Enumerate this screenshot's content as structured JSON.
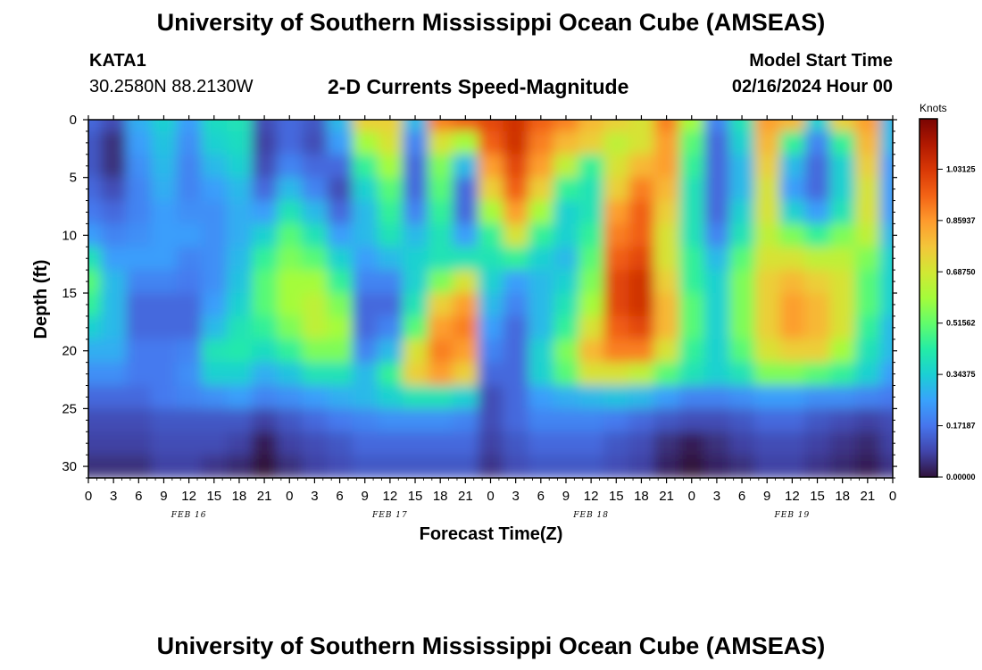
{
  "page": {
    "title_top": "University of Southern Mississippi Ocean Cube (AMSEAS)",
    "title_bottom": "University of Southern Mississippi Ocean Cube (AMSEAS)",
    "station_id": "KATA1",
    "station_coords": "30.2580N  88.2130W",
    "subtitle": "2-D Currents Speed-Magnitude",
    "model_start_label": "Model Start Time",
    "model_start_value": "02/16/2024 Hour 00"
  },
  "chart_data": {
    "type": "heatmap",
    "title": "2-D Currents Speed-Magnitude",
    "xlabel": "Forecast Time(Z)",
    "ylabel": "Depth (ft)",
    "x_range_hours": [
      0,
      96
    ],
    "y_range_ft": [
      0,
      31
    ],
    "y_inverted": true,
    "y_ticks": [
      0,
      5,
      10,
      15,
      20,
      25,
      30
    ],
    "x_tick_labels": [
      "0",
      "3",
      "6",
      "9",
      "12",
      "15",
      "18",
      "21",
      "0",
      "3",
      "6",
      "9",
      "12",
      "15",
      "18",
      "21",
      "0",
      "3",
      "6",
      "9",
      "12",
      "15",
      "18",
      "21",
      "0",
      "3",
      "6",
      "9",
      "12",
      "15",
      "18",
      "21",
      "0"
    ],
    "day_labels": [
      "FEB 16",
      "FEB 17",
      "FEB 18",
      "FEB 19"
    ],
    "colorbar": {
      "title": "Knots",
      "tick_labels": [
        "1.03125",
        "0.85937",
        "0.68750",
        "0.51562",
        "0.34375",
        "0.17187",
        "0.00000"
      ],
      "range": [
        0,
        1.2
      ],
      "colors": [
        "#30123b",
        "#4145ab",
        "#4675ed",
        "#39a2fc",
        "#1bcfd4",
        "#24eca6",
        "#61fc6c",
        "#a4fc3b",
        "#d1e834",
        "#f3c63a",
        "#fe9b2d",
        "#f36315",
        "#d93806",
        "#b11901",
        "#7a0402"
      ]
    },
    "speed_field_knots": {
      "description": "depth rows at 0,2,4,...,30 ft; columns every 3 hours from 0 to 96",
      "depths_ft": [
        0,
        2,
        4,
        6,
        8,
        10,
        12,
        14,
        16,
        18,
        20,
        22,
        24,
        26,
        28,
        30
      ],
      "hours": [
        0,
        3,
        6,
        9,
        12,
        15,
        18,
        21,
        24,
        27,
        30,
        33,
        36,
        39,
        42,
        45,
        48,
        51,
        54,
        57,
        60,
        63,
        66,
        69,
        72,
        75,
        78,
        81,
        84,
        87,
        90,
        93,
        96
      ],
      "rows": [
        [
          0.15,
          0.1,
          0.28,
          0.35,
          0.25,
          0.38,
          0.4,
          0.1,
          0.15,
          0.12,
          0.3,
          0.75,
          0.75,
          0.3,
          0.9,
          0.95,
          1.0,
          1.05,
          0.95,
          0.9,
          0.8,
          0.75,
          0.7,
          0.9,
          0.6,
          0.2,
          0.4,
          0.85,
          0.8,
          0.35,
          0.75,
          0.85,
          0.3
        ],
        [
          0.12,
          0.05,
          0.25,
          0.32,
          0.22,
          0.35,
          0.38,
          0.08,
          0.15,
          0.1,
          0.25,
          0.6,
          0.7,
          0.2,
          0.7,
          0.6,
          0.95,
          1.05,
          0.9,
          0.8,
          0.75,
          0.65,
          0.7,
          0.85,
          0.5,
          0.15,
          0.35,
          0.8,
          0.45,
          0.2,
          0.45,
          0.8,
          0.3
        ],
        [
          0.12,
          0.05,
          0.22,
          0.3,
          0.2,
          0.3,
          0.35,
          0.1,
          0.2,
          0.15,
          0.15,
          0.45,
          0.6,
          0.15,
          0.55,
          0.3,
          0.85,
          1.0,
          0.85,
          0.65,
          0.45,
          0.7,
          0.8,
          0.85,
          0.45,
          0.15,
          0.3,
          0.75,
          0.3,
          0.15,
          0.35,
          0.75,
          0.25
        ],
        [
          0.15,
          0.1,
          0.2,
          0.28,
          0.2,
          0.25,
          0.3,
          0.15,
          0.3,
          0.2,
          0.1,
          0.35,
          0.5,
          0.15,
          0.5,
          0.15,
          0.75,
          0.95,
          0.75,
          0.45,
          0.4,
          0.75,
          0.9,
          0.8,
          0.4,
          0.15,
          0.3,
          0.7,
          0.25,
          0.15,
          0.35,
          0.7,
          0.25
        ],
        [
          0.18,
          0.15,
          0.2,
          0.25,
          0.22,
          0.22,
          0.28,
          0.25,
          0.4,
          0.3,
          0.15,
          0.3,
          0.45,
          0.2,
          0.45,
          0.15,
          0.6,
          0.85,
          0.6,
          0.35,
          0.4,
          0.85,
          0.95,
          0.75,
          0.4,
          0.15,
          0.35,
          0.7,
          0.35,
          0.25,
          0.4,
          0.7,
          0.25
        ],
        [
          0.25,
          0.2,
          0.22,
          0.25,
          0.25,
          0.22,
          0.28,
          0.35,
          0.5,
          0.4,
          0.25,
          0.3,
          0.4,
          0.3,
          0.4,
          0.25,
          0.45,
          0.7,
          0.45,
          0.35,
          0.45,
          0.9,
          0.95,
          0.7,
          0.4,
          0.2,
          0.4,
          0.65,
          0.55,
          0.45,
          0.55,
          0.65,
          0.3
        ],
        [
          0.4,
          0.25,
          0.25,
          0.25,
          0.2,
          0.22,
          0.3,
          0.45,
          0.55,
          0.5,
          0.35,
          0.25,
          0.3,
          0.35,
          0.4,
          0.4,
          0.4,
          0.45,
          0.35,
          0.3,
          0.5,
          0.95,
          1.0,
          0.7,
          0.45,
          0.3,
          0.5,
          0.7,
          0.7,
          0.65,
          0.65,
          0.55,
          0.35
        ],
        [
          0.5,
          0.3,
          0.2,
          0.2,
          0.18,
          0.22,
          0.32,
          0.5,
          0.6,
          0.6,
          0.45,
          0.2,
          0.2,
          0.35,
          0.55,
          0.7,
          0.35,
          0.25,
          0.3,
          0.35,
          0.55,
          1.0,
          1.05,
          0.75,
          0.45,
          0.35,
          0.55,
          0.75,
          0.8,
          0.75,
          0.7,
          0.5,
          0.35
        ],
        [
          0.45,
          0.3,
          0.15,
          0.15,
          0.15,
          0.25,
          0.35,
          0.5,
          0.6,
          0.65,
          0.55,
          0.15,
          0.15,
          0.4,
          0.75,
          0.85,
          0.3,
          0.2,
          0.3,
          0.4,
          0.6,
          1.0,
          1.05,
          0.8,
          0.5,
          0.35,
          0.55,
          0.75,
          0.85,
          0.8,
          0.7,
          0.5,
          0.35
        ],
        [
          0.35,
          0.3,
          0.15,
          0.15,
          0.15,
          0.3,
          0.4,
          0.45,
          0.55,
          0.65,
          0.6,
          0.15,
          0.2,
          0.5,
          0.85,
          0.9,
          0.25,
          0.15,
          0.3,
          0.45,
          0.7,
          0.95,
          1.0,
          0.8,
          0.5,
          0.35,
          0.55,
          0.75,
          0.85,
          0.8,
          0.7,
          0.45,
          0.3
        ],
        [
          0.28,
          0.28,
          0.18,
          0.18,
          0.2,
          0.4,
          0.42,
          0.38,
          0.45,
          0.55,
          0.55,
          0.2,
          0.3,
          0.7,
          0.9,
          0.85,
          0.2,
          0.15,
          0.35,
          0.55,
          0.8,
          0.9,
          0.9,
          0.7,
          0.45,
          0.35,
          0.5,
          0.7,
          0.75,
          0.75,
          0.6,
          0.4,
          0.3
        ],
        [
          0.22,
          0.22,
          0.18,
          0.18,
          0.22,
          0.35,
          0.35,
          0.28,
          0.32,
          0.4,
          0.4,
          0.3,
          0.45,
          0.75,
          0.85,
          0.75,
          0.15,
          0.15,
          0.35,
          0.5,
          0.7,
          0.7,
          0.65,
          0.5,
          0.4,
          0.35,
          0.4,
          0.55,
          0.55,
          0.5,
          0.45,
          0.35,
          0.25
        ],
        [
          0.15,
          0.15,
          0.15,
          0.18,
          0.2,
          0.22,
          0.25,
          0.2,
          0.22,
          0.25,
          0.28,
          0.3,
          0.35,
          0.4,
          0.4,
          0.35,
          0.1,
          0.15,
          0.25,
          0.28,
          0.3,
          0.32,
          0.3,
          0.25,
          0.2,
          0.2,
          0.22,
          0.25,
          0.25,
          0.22,
          0.22,
          0.2,
          0.18
        ],
        [
          0.1,
          0.1,
          0.1,
          0.12,
          0.12,
          0.12,
          0.12,
          0.08,
          0.12,
          0.15,
          0.18,
          0.2,
          0.22,
          0.22,
          0.22,
          0.2,
          0.1,
          0.15,
          0.2,
          0.2,
          0.2,
          0.18,
          0.15,
          0.12,
          0.1,
          0.1,
          0.12,
          0.15,
          0.15,
          0.12,
          0.1,
          0.08,
          0.1
        ],
        [
          0.08,
          0.08,
          0.08,
          0.1,
          0.1,
          0.1,
          0.08,
          0.02,
          0.08,
          0.1,
          0.12,
          0.15,
          0.15,
          0.15,
          0.15,
          0.15,
          0.08,
          0.12,
          0.15,
          0.15,
          0.15,
          0.12,
          0.1,
          0.05,
          0.02,
          0.05,
          0.08,
          0.1,
          0.1,
          0.08,
          0.06,
          0.04,
          0.08
        ],
        [
          0.05,
          0.05,
          0.05,
          0.08,
          0.08,
          0.06,
          0.04,
          0.0,
          0.05,
          0.08,
          0.1,
          0.12,
          0.12,
          0.12,
          0.12,
          0.12,
          0.06,
          0.1,
          0.12,
          0.12,
          0.12,
          0.1,
          0.08,
          0.03,
          0.0,
          0.03,
          0.05,
          0.08,
          0.08,
          0.06,
          0.04,
          0.02,
          0.06
        ]
      ]
    }
  }
}
